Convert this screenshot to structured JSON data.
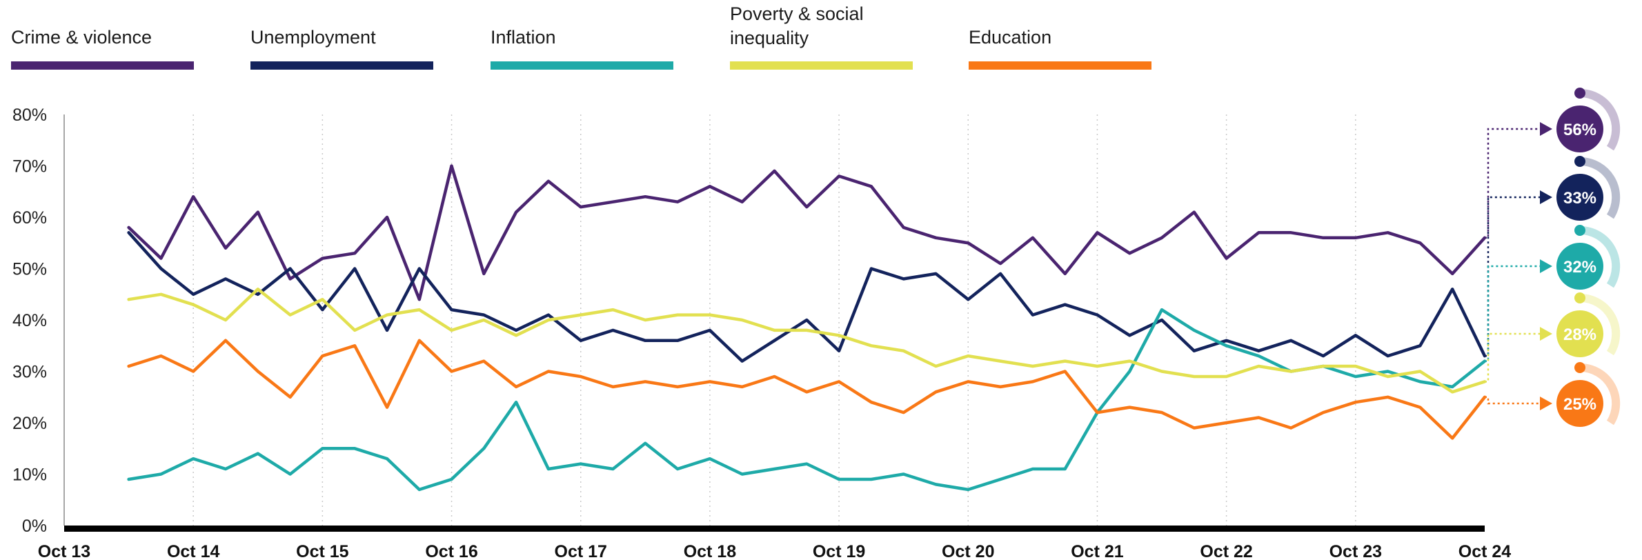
{
  "chart_data": {
    "type": "line",
    "xlabel": "",
    "ylabel": "",
    "ylim": [
      0,
      80
    ],
    "yticks": [
      "0%",
      "10%",
      "20%",
      "30%",
      "40%",
      "50%",
      "60%",
      "70%",
      "80%"
    ],
    "xticks": [
      "Oct 13",
      "Oct 14",
      "Oct 15",
      "Oct 16",
      "Oct 17",
      "Oct 18",
      "Oct 19",
      "Oct 20",
      "Oct 21",
      "Oct 22",
      "Oct 23",
      "Oct 24"
    ],
    "x_range": [
      "2013-10",
      "2024-10"
    ],
    "grid": "vertical-dotted",
    "legend": "top",
    "x": [
      "2014-04",
      "2014-07",
      "2014-10",
      "2015-01",
      "2015-04",
      "2015-07",
      "2015-10",
      "2016-01",
      "2016-04",
      "2016-07",
      "2016-10",
      "2017-01",
      "2017-04",
      "2017-07",
      "2017-10",
      "2018-01",
      "2018-04",
      "2018-07",
      "2018-10",
      "2019-01",
      "2019-04",
      "2019-07",
      "2019-10",
      "2020-01",
      "2020-04",
      "2020-07",
      "2020-10",
      "2021-01",
      "2021-04",
      "2021-07",
      "2021-10",
      "2022-01",
      "2022-04",
      "2022-07",
      "2022-10",
      "2023-01",
      "2023-04",
      "2023-07",
      "2023-10",
      "2024-01",
      "2024-04",
      "2024-07",
      "2024-10"
    ],
    "series": [
      {
        "name": "Crime & violence",
        "color": "#4a2470",
        "end_label": "56%",
        "values": [
          58,
          52,
          64,
          54,
          61,
          48,
          52,
          53,
          60,
          44,
          70,
          49,
          61,
          67,
          62,
          63,
          64,
          63,
          66,
          63,
          69,
          62,
          68,
          66,
          58,
          56,
          55,
          51,
          56,
          49,
          57,
          53,
          56,
          61,
          52,
          57,
          57,
          56,
          56,
          57,
          55,
          49,
          56
        ]
      },
      {
        "name": "Unemployment",
        "color": "#13235c",
        "end_label": "33%",
        "values": [
          57,
          50,
          45,
          48,
          45,
          50,
          42,
          50,
          38,
          50,
          42,
          41,
          38,
          41,
          36,
          38,
          36,
          36,
          38,
          32,
          36,
          40,
          34,
          50,
          48,
          49,
          44,
          49,
          41,
          43,
          41,
          37,
          40,
          34,
          36,
          34,
          36,
          33,
          37,
          33,
          35,
          46,
          33
        ]
      },
      {
        "name": "Inflation",
        "color": "#1eaaa8",
        "end_label": "32%",
        "values": [
          9,
          10,
          13,
          11,
          14,
          10,
          15,
          15,
          13,
          7,
          9,
          15,
          24,
          11,
          12,
          11,
          16,
          11,
          13,
          10,
          11,
          12,
          9,
          9,
          10,
          8,
          7,
          9,
          11,
          11,
          22,
          30,
          42,
          38,
          35,
          33,
          30,
          31,
          29,
          30,
          28,
          27,
          32
        ]
      },
      {
        "name": "Poverty & social\ninequality",
        "color": "#e2e050",
        "end_label": "28%",
        "values": [
          44,
          45,
          43,
          40,
          46,
          41,
          44,
          38,
          41,
          42,
          38,
          40,
          37,
          40,
          41,
          42,
          40,
          41,
          41,
          40,
          38,
          38,
          37,
          35,
          34,
          31,
          33,
          32,
          31,
          32,
          31,
          32,
          30,
          29,
          29,
          31,
          30,
          31,
          31,
          29,
          30,
          26,
          28
        ]
      },
      {
        "name": "Education",
        "color": "#f97816",
        "end_label": "25%",
        "values": [
          31,
          33,
          30,
          36,
          30,
          25,
          33,
          35,
          23,
          36,
          30,
          32,
          27,
          30,
          29,
          27,
          28,
          27,
          28,
          27,
          29,
          26,
          28,
          24,
          22,
          26,
          28,
          27,
          28,
          30,
          22,
          23,
          22,
          19,
          20,
          21,
          19,
          22,
          24,
          25,
          23,
          17,
          25
        ]
      }
    ]
  }
}
